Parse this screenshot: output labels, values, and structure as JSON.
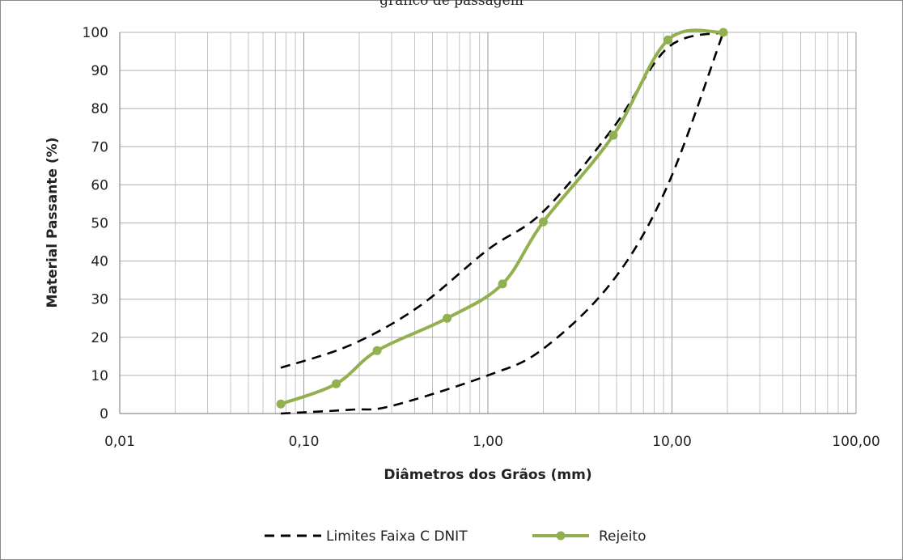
{
  "chart_data": {
    "type": "line",
    "title": "",
    "top_caption": "gráfico de passagem",
    "xlabel": "Diâmetros dos Grãos (mm)",
    "ylabel": "Material Passante (%)",
    "xscale": "log",
    "xlim": [
      0.01,
      100
    ],
    "ylim": [
      0,
      100
    ],
    "x_tick_labels": [
      "0,01",
      "0,10",
      "1,00",
      "10,00",
      "100,00"
    ],
    "y_ticks": [
      0,
      10,
      20,
      30,
      40,
      50,
      60,
      70,
      80,
      90,
      100
    ],
    "grid": true,
    "legend_position": "bottom",
    "series": [
      {
        "name": "Limites Faixa C DNIT",
        "style": "dashed",
        "color": "#000000",
        "limits": [
          {
            "x": [
              0.075,
              0.18,
              0.42,
              1.0,
              2.0,
              4.8,
              9.5,
              19.0
            ],
            "y": [
              12,
              18,
              28,
              43,
              53,
              75,
              96,
              100
            ]
          },
          {
            "x": [
              0.075,
              0.18,
              0.3,
              1.0,
              2.0,
              4.8,
              9.5,
              19.0
            ],
            "y": [
              0,
              1,
              2,
              10,
              17,
              35,
              60,
              100
            ]
          }
        ]
      },
      {
        "name": "Rejeito",
        "style": "solid",
        "color": "#92b050",
        "marker": "circle",
        "x": [
          0.075,
          0.15,
          0.25,
          0.6,
          1.2,
          2.0,
          4.8,
          9.5,
          19.0
        ],
        "y": [
          2.5,
          7.8,
          16.5,
          25.0,
          34.0,
          50.3,
          73.0,
          98.0,
          100.0
        ]
      }
    ]
  }
}
